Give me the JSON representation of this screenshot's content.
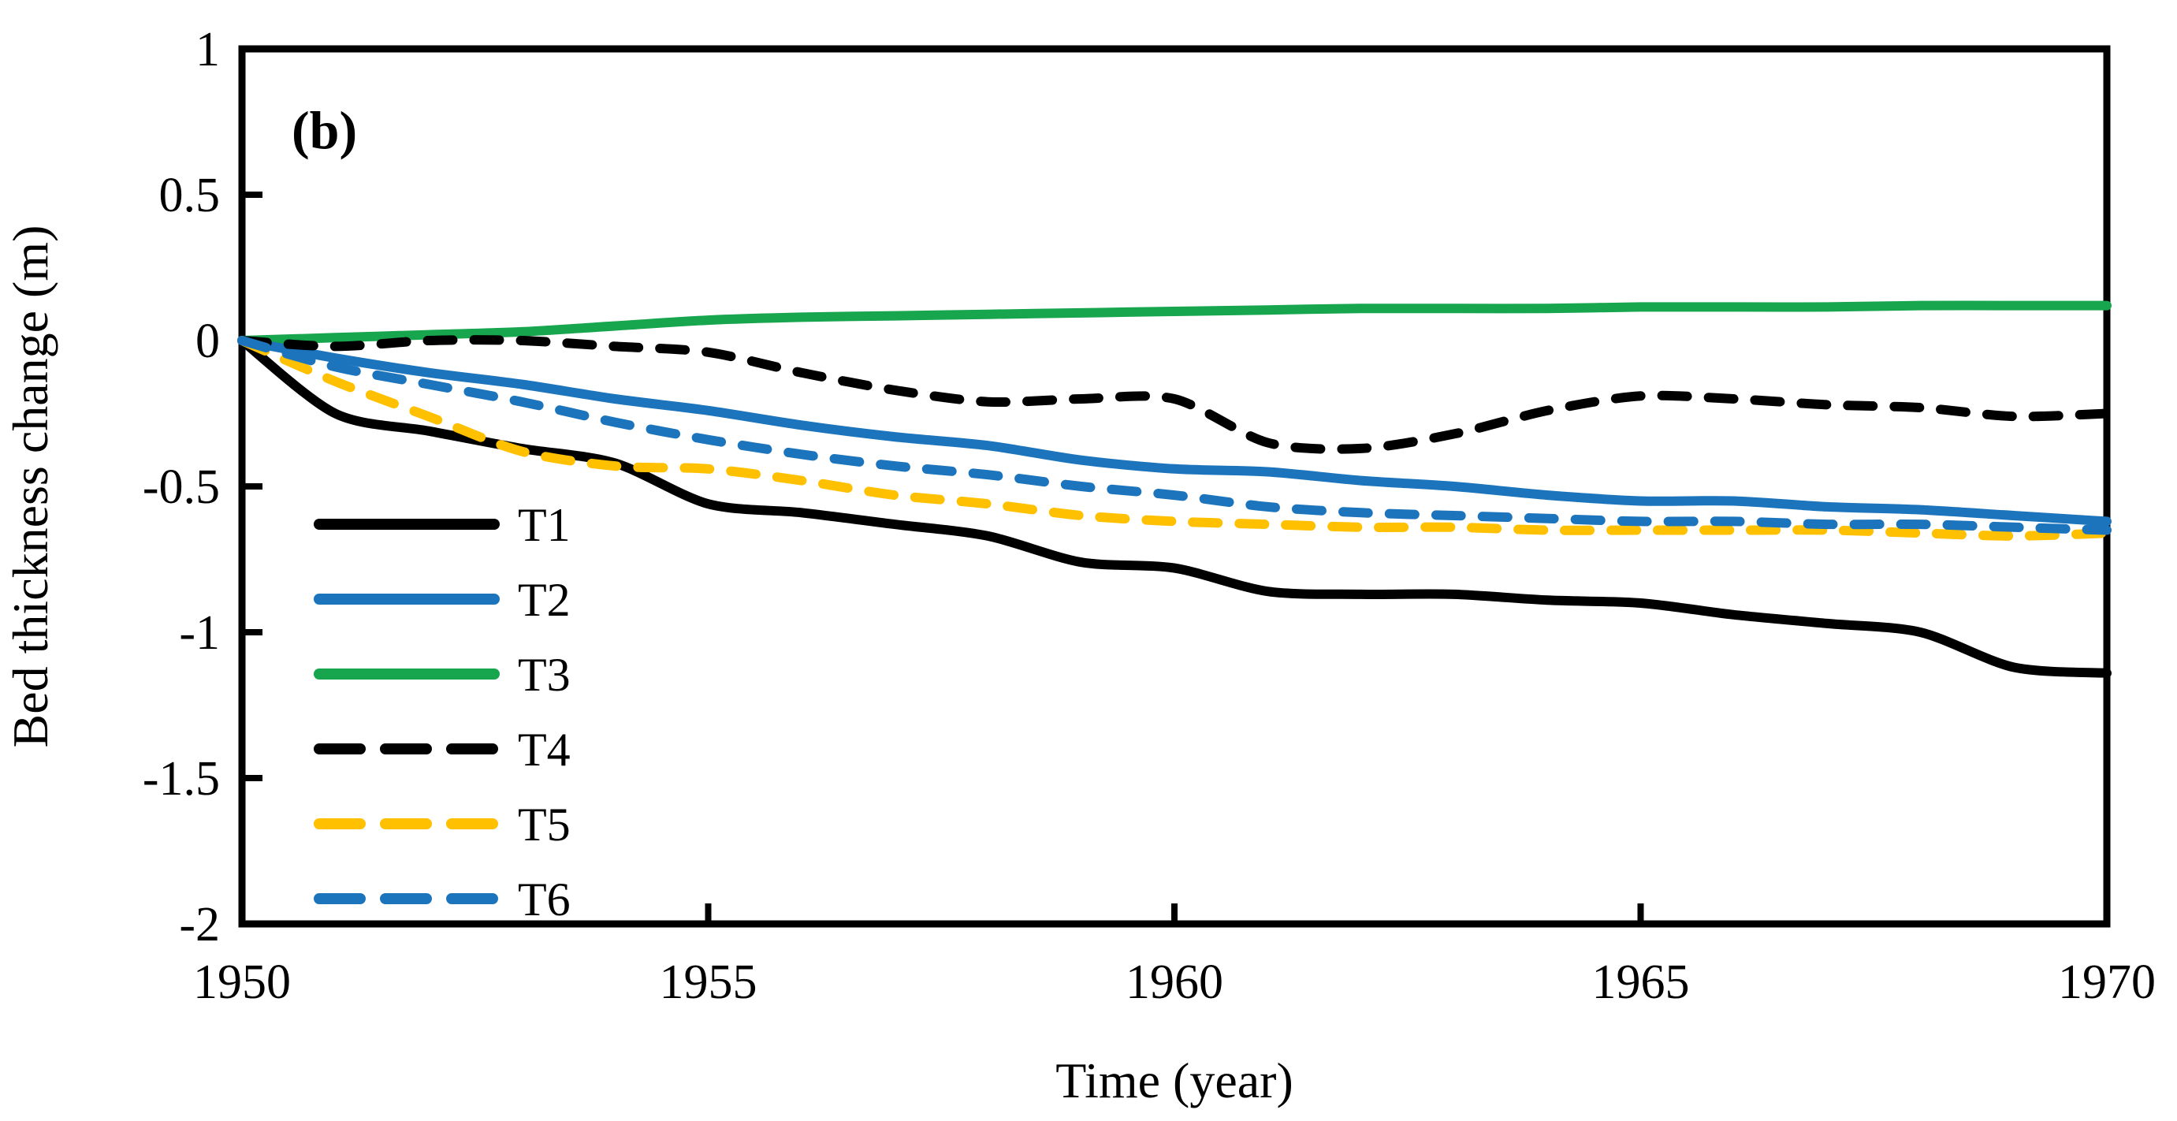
{
  "panel_label": "(b)",
  "axes": {
    "x": {
      "title": "Time (year)",
      "tick_labels": [
        "1950",
        "1955",
        "1960",
        "1965",
        "1970"
      ],
      "tick_values": [
        1950,
        1955,
        1960,
        1965,
        1970
      ],
      "range": [
        1950,
        1970
      ]
    },
    "y": {
      "title": "Bed thickness change (m)",
      "tick_labels": [
        "1",
        "0.5",
        "0",
        "-0.5",
        "-1",
        "-1.5",
        "-2"
      ],
      "tick_values": [
        1,
        0.5,
        0,
        -0.5,
        -1,
        -1.5,
        -2
      ],
      "range": [
        -2,
        1
      ]
    }
  },
  "legend": {
    "position": "inside-bottom-left",
    "entries": [
      {
        "label": "T1",
        "color": "#000000",
        "style": "solid"
      },
      {
        "label": "T2",
        "color": "#1C75BC",
        "style": "solid"
      },
      {
        "label": "T3",
        "color": "#17A54D",
        "style": "solid"
      },
      {
        "label": "T4",
        "color": "#000000",
        "style": "dashed"
      },
      {
        "label": "T5",
        "color": "#FFC000",
        "style": "dashed"
      },
      {
        "label": "T6",
        "color": "#1C75BC",
        "style": "dashed"
      }
    ]
  },
  "chart_data": {
    "type": "line",
    "title": "",
    "xlabel": "Time (year)",
    "ylabel": "Bed thickness change (m)",
    "xlim": [
      1950,
      1970
    ],
    "ylim": [
      -2,
      1
    ],
    "grid": false,
    "legend_position": "inside-bottom-left",
    "x": [
      1950,
      1951,
      1952,
      1953,
      1954,
      1955,
      1956,
      1957,
      1958,
      1959,
      1960,
      1961,
      1962,
      1963,
      1964,
      1965,
      1966,
      1967,
      1968,
      1969,
      1970
    ],
    "series": [
      {
        "name": "T3",
        "color": "#17A54D",
        "style": "solid",
        "values": [
          0,
          0.01,
          0.02,
          0.03,
          0.05,
          0.07,
          0.08,
          0.085,
          0.09,
          0.095,
          0.1,
          0.105,
          0.11,
          0.11,
          0.11,
          0.115,
          0.115,
          0.115,
          0.12,
          0.12,
          0.12
        ]
      },
      {
        "name": "T2",
        "color": "#1C75BC",
        "style": "solid",
        "values": [
          0,
          -0.06,
          -0.11,
          -0.15,
          -0.2,
          -0.24,
          -0.29,
          -0.33,
          -0.36,
          -0.41,
          -0.44,
          -0.45,
          -0.48,
          -0.5,
          -0.53,
          -0.55,
          -0.55,
          -0.57,
          -0.58,
          -0.6,
          -0.62
        ]
      },
      {
        "name": "T1",
        "color": "#000000",
        "style": "solid",
        "values": [
          0,
          -0.25,
          -0.31,
          -0.37,
          -0.42,
          -0.56,
          -0.59,
          -0.63,
          -0.67,
          -0.76,
          -0.78,
          -0.86,
          -0.87,
          -0.87,
          -0.89,
          -0.9,
          -0.94,
          -0.97,
          -1.0,
          -1.12,
          -1.14
        ]
      },
      {
        "name": "T4",
        "color": "#000000",
        "style": "dashed",
        "values": [
          0,
          -0.02,
          0.0,
          0.0,
          -0.02,
          -0.04,
          -0.11,
          -0.17,
          -0.21,
          -0.2,
          -0.2,
          -0.35,
          -0.37,
          -0.32,
          -0.24,
          -0.19,
          -0.2,
          -0.22,
          -0.23,
          -0.26,
          -0.25
        ]
      },
      {
        "name": "T5",
        "color": "#FFC000",
        "style": "dashed",
        "values": [
          0,
          -0.14,
          -0.26,
          -0.38,
          -0.43,
          -0.44,
          -0.48,
          -0.53,
          -0.56,
          -0.6,
          -0.62,
          -0.63,
          -0.64,
          -0.64,
          -0.65,
          -0.65,
          -0.65,
          -0.65,
          -0.66,
          -0.67,
          -0.66
        ]
      },
      {
        "name": "T6",
        "color": "#1C75BC",
        "style": "dashed",
        "values": [
          0,
          -0.09,
          -0.15,
          -0.21,
          -0.28,
          -0.34,
          -0.39,
          -0.43,
          -0.46,
          -0.5,
          -0.53,
          -0.57,
          -0.59,
          -0.6,
          -0.61,
          -0.62,
          -0.62,
          -0.63,
          -0.63,
          -0.64,
          -0.65
        ]
      }
    ]
  }
}
